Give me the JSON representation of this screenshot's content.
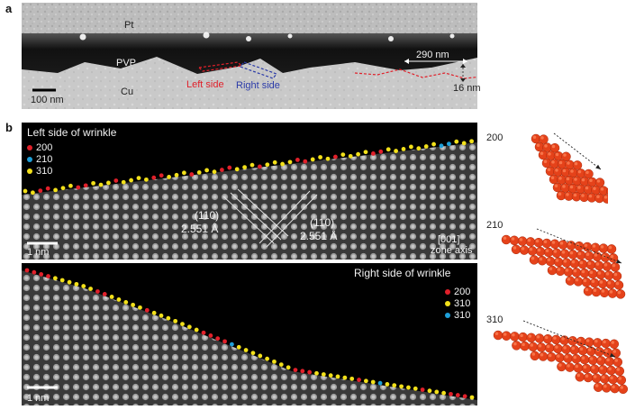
{
  "figure": {
    "panel_a": {
      "label": "a",
      "layers": {
        "pt": "Pt",
        "pvp": "PVP",
        "cu": "Cu"
      },
      "scalebar": "100 nm",
      "left_side": "Left side",
      "right_side": "Right side",
      "period": "290 nm",
      "amplitude": "16 nm"
    },
    "panel_b": {
      "label": "b",
      "top": {
        "title": "Left side of wrinkle",
        "legend": [
          {
            "label": "200",
            "color": "#e0202a"
          },
          {
            "label": "210",
            "color": "#1e9fd8"
          },
          {
            "label": "310",
            "color": "#f2e01a"
          }
        ],
        "plane_left": "(110)",
        "spacing_left": "2.551 Å",
        "plane_right": "(110)",
        "spacing_right": "2.551 Å",
        "zone_index": "[001]",
        "zone_text": "zone axis",
        "scalebar": "1 nm"
      },
      "bottom": {
        "title": "Right side of wrinkle",
        "legend": [
          {
            "label": "200",
            "color": "#e0202a"
          },
          {
            "label": "310",
            "color": "#f2e01a"
          },
          {
            "label": "310",
            "color": "#1e9fd8"
          }
        ],
        "scalebar": "1 nm"
      },
      "models": [
        {
          "label": "200"
        },
        {
          "label": "210"
        },
        {
          "label": "310"
        }
      ]
    }
  }
}
